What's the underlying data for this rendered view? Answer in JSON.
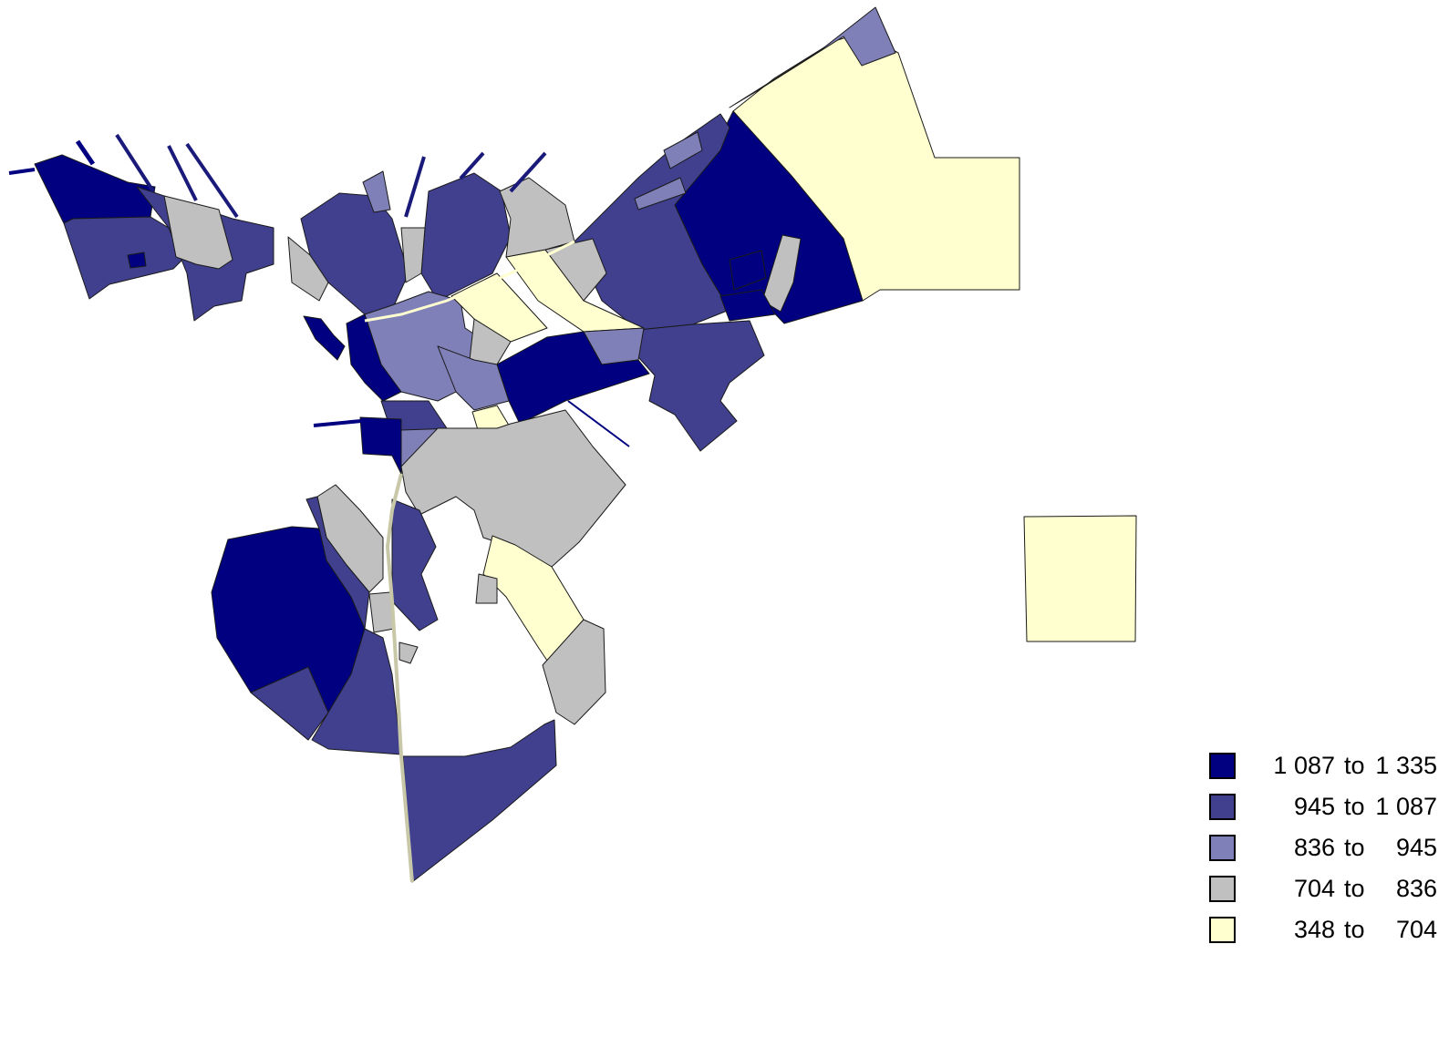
{
  "colors": {
    "c1": "#000080",
    "c2": "#40408f",
    "c3": "#8080b8",
    "c4": "#c0c0c0",
    "c5": "#ffffd0"
  },
  "legend": {
    "items": [
      {
        "low": "1 087",
        "sep": "to",
        "high": "1 335",
        "color": "#000080"
      },
      {
        "low": "945",
        "sep": "to",
        "high": "1 087",
        "color": "#40408f"
      },
      {
        "low": "836",
        "sep": "to",
        "high": "945",
        "color": "#8080b8"
      },
      {
        "low": "704",
        "sep": "to",
        "high": "836",
        "color": "#c0c0c0"
      },
      {
        "low": "348",
        "sep": "to",
        "high": "704",
        "color": "#ffffd0"
      }
    ]
  }
}
